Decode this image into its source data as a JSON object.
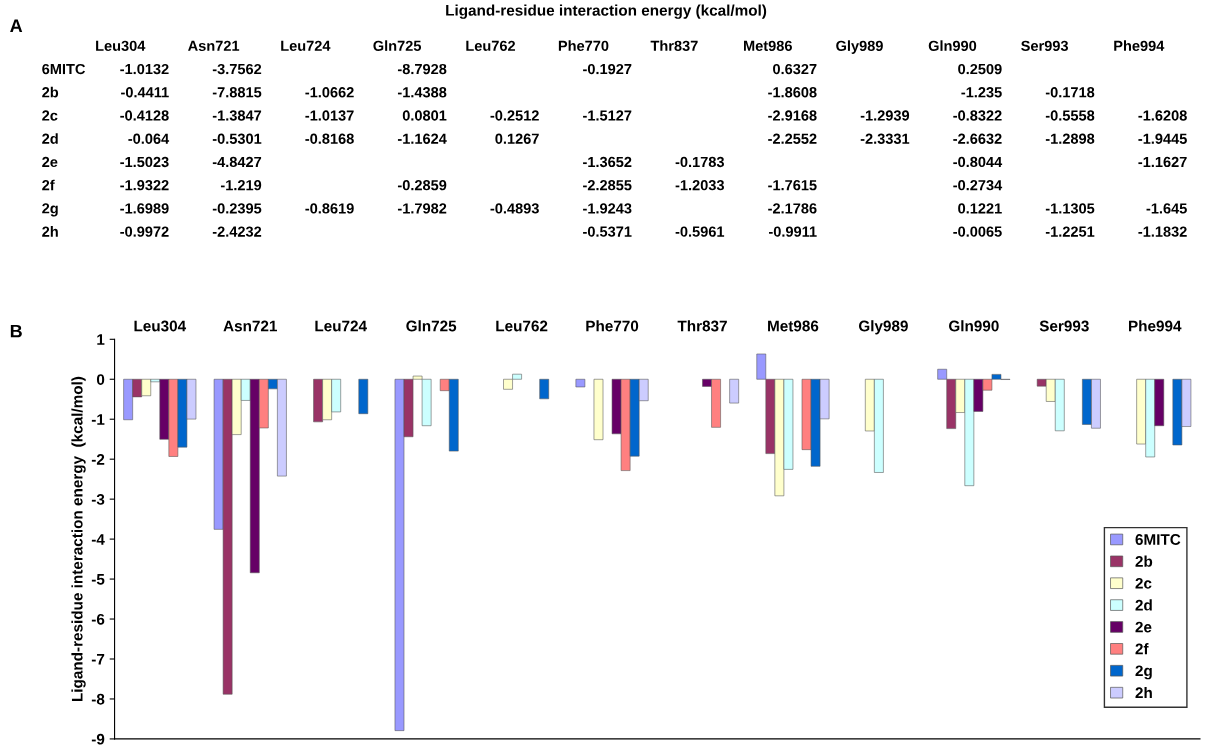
{
  "chart_data": {
    "type": "bar",
    "title": "Ligand-residue interaction energy (kcal/mol)",
    "ylabel": "Ligand-residue interaction energy  (kcal/mol)",
    "annotations": [
      "A",
      "B"
    ],
    "categories": [
      "Leu304",
      "Asn721",
      "Leu724",
      "Gln725",
      "Leu762",
      "Phe770",
      "Thr837",
      "Met986",
      "Gly989",
      "Gln990",
      "Ser993",
      "Phe994"
    ],
    "series": [
      {
        "name": "6MITC",
        "color": "#9999ff",
        "values": [
          -1.0132,
          -3.7562,
          null,
          -8.7928,
          null,
          -0.1927,
          null,
          0.6327,
          null,
          0.2509,
          null,
          null
        ]
      },
      {
        "name": "2b",
        "color": "#993366",
        "values": [
          -0.4411,
          -7.8815,
          -1.0662,
          -1.4388,
          null,
          null,
          null,
          -1.8608,
          null,
          -1.235,
          -0.1718,
          null
        ]
      },
      {
        "name": "2c",
        "color": "#ffffcc",
        "values": [
          -0.4128,
          -1.3847,
          -1.0137,
          0.0801,
          -0.2512,
          -1.5127,
          null,
          -2.9168,
          -1.2939,
          -0.8322,
          -0.5558,
          -1.6208
        ]
      },
      {
        "name": "2d",
        "color": "#ccffff",
        "values": [
          -0.064,
          -0.5301,
          -0.8168,
          -1.1624,
          0.1267,
          null,
          null,
          -2.2552,
          -2.3331,
          -2.6632,
          -1.2898,
          -1.9445
        ]
      },
      {
        "name": "2e",
        "color": "#660066",
        "values": [
          -1.5023,
          -4.8427,
          null,
          null,
          null,
          -1.3652,
          -0.1783,
          null,
          null,
          -0.8044,
          null,
          -1.1627
        ]
      },
      {
        "name": "2f",
        "color": "#ff8080",
        "values": [
          -1.9322,
          -1.219,
          null,
          -0.2859,
          null,
          -2.2855,
          -1.2033,
          -1.7615,
          null,
          -0.2734,
          null,
          null
        ]
      },
      {
        "name": "2g",
        "color": "#0066cc",
        "values": [
          -1.6989,
          -0.2395,
          -0.8619,
          -1.7982,
          -0.4893,
          -1.9243,
          null,
          -2.1786,
          null,
          0.1221,
          -1.1305,
          -1.645
        ]
      },
      {
        "name": "2h",
        "color": "#ccccff",
        "values": [
          -0.9972,
          -2.4232,
          null,
          null,
          null,
          -0.5371,
          -0.5961,
          -0.9911,
          null,
          -0.0065,
          -1.2251,
          -1.1832
        ]
      }
    ],
    "ylim": [
      -9,
      1
    ],
    "yticks": [
      -9,
      -8,
      -7,
      -6,
      -5,
      -4,
      -3,
      -2,
      -1,
      0,
      1
    ],
    "grid": false,
    "legend": "bottom right",
    "data_labels": true
  }
}
